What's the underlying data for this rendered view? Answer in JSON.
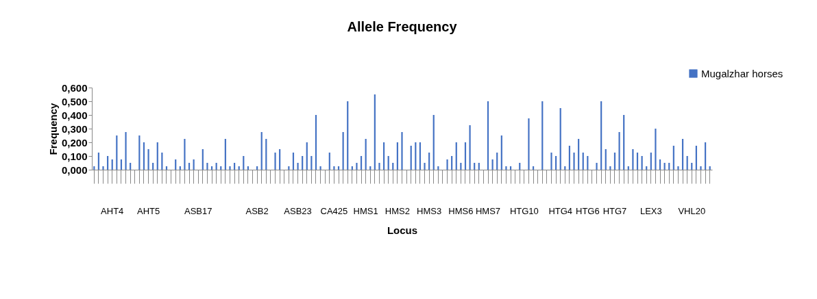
{
  "chart_data": {
    "type": "bar",
    "title": "Allele Frequency",
    "xlabel": "Locus",
    "ylabel": "Frequency",
    "categories": [
      null,
      null,
      null,
      null,
      "AHT4",
      null,
      null,
      null,
      null,
      null,
      null,
      null,
      "AHT5",
      null,
      null,
      null,
      null,
      null,
      null,
      null,
      null,
      null,
      null,
      "ASB17",
      null,
      null,
      null,
      null,
      null,
      null,
      null,
      null,
      null,
      null,
      null,
      null,
      "ASB2",
      null,
      null,
      null,
      null,
      null,
      null,
      null,
      null,
      "ASB23",
      null,
      null,
      null,
      null,
      null,
      null,
      null,
      "CA425",
      null,
      null,
      null,
      null,
      null,
      null,
      "HMS1",
      null,
      null,
      null,
      null,
      null,
      null,
      "HMS2",
      null,
      null,
      null,
      null,
      null,
      null,
      "HMS3",
      null,
      null,
      null,
      null,
      null,
      null,
      "HMS6",
      null,
      null,
      null,
      null,
      null,
      "HMS7",
      null,
      null,
      null,
      null,
      null,
      null,
      null,
      "HTG10",
      null,
      null,
      null,
      null,
      null,
      null,
      null,
      "HTG4",
      null,
      null,
      null,
      null,
      null,
      "HTG6",
      null,
      null,
      null,
      null,
      null,
      "HTG7",
      null,
      null,
      null,
      null,
      null,
      null,
      null,
      "LEX3",
      null,
      null,
      null,
      null,
      null,
      null,
      null,
      null,
      "VHL20",
      null,
      null,
      null,
      null
    ],
    "series": [
      {
        "name": "Mugalzhar horses",
        "color": "#4472c4",
        "values": [
          0.025,
          0.125,
          0.025,
          0.1,
          0.075,
          0.25,
          0.075,
          0.275,
          0.05,
          0,
          0.25,
          0.2,
          0.15,
          0.05,
          0.2,
          0.125,
          0.025,
          0,
          0.075,
          0.025,
          0.225,
          0.05,
          0.075,
          0,
          0.15,
          0.05,
          0.025,
          0.05,
          0.025,
          0.225,
          0.025,
          0.05,
          0.025,
          0.1,
          0.025,
          0,
          0.025,
          0.275,
          0.225,
          0,
          0.125,
          0.15,
          0,
          0.025,
          0.125,
          0.05,
          0.1,
          0.2,
          0.1,
          0.4,
          0.025,
          0,
          0.125,
          0.025,
          0.025,
          0.275,
          0.5,
          0.025,
          0.05,
          0.1,
          0.225,
          0.025,
          0.55,
          0.05,
          0.2,
          0.1,
          0.05,
          0.2,
          0.275,
          0,
          0.175,
          0.2,
          0.2,
          0.05,
          0.125,
          0.4,
          0.025,
          0,
          0.075,
          0.1,
          0.2,
          0.05,
          0.2,
          0.325,
          0.05,
          0.05,
          0,
          0.5,
          0.075,
          0.125,
          0.25,
          0.025,
          0.025,
          0,
          0.05,
          0,
          0.375,
          0.025,
          0,
          0.5,
          0,
          0.125,
          0.1,
          0.45,
          0.025,
          0.175,
          0.125,
          0.225,
          0.125,
          0.1,
          0,
          0.05,
          0.5,
          0.15,
          0.025,
          0.125,
          0.275,
          0.4,
          0.025,
          0.15,
          0.125,
          0.1,
          0.025,
          0.125,
          0.3,
          0.075,
          0.05,
          0.05,
          0.175,
          0.025,
          0.225,
          0.1,
          0.05,
          0.175,
          0.025,
          0.2,
          0.025
        ]
      }
    ],
    "ylim": [
      0,
      0.6
    ],
    "yticks": [
      {
        "value": 0,
        "label": "0,000"
      },
      {
        "value": 0.1,
        "label": "0,100"
      },
      {
        "value": 0.2,
        "label": "0,200"
      },
      {
        "value": 0.3,
        "label": "0,300"
      },
      {
        "value": 0.4,
        "label": "0,400"
      },
      {
        "value": 0.5,
        "label": "0,500"
      },
      {
        "value": 0.6,
        "label": "0,600"
      }
    ],
    "legend": "top right"
  }
}
